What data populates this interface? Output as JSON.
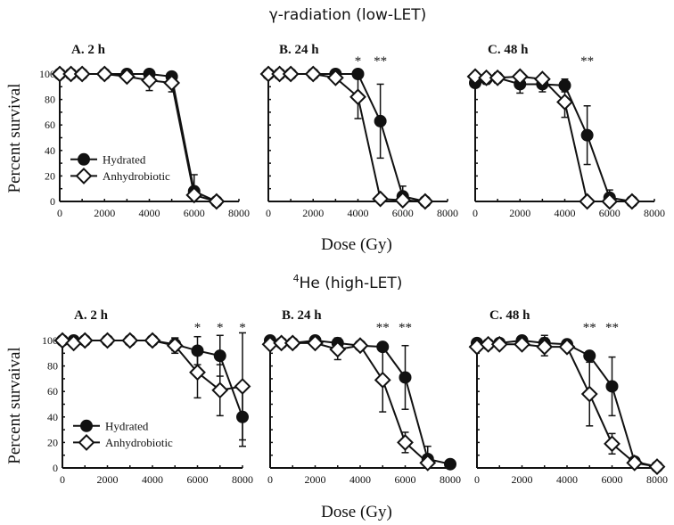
{
  "figure": {
    "sections": [
      {
        "title": "γ-radiation (low-LET)",
        "xlabel": "Dose (Gy)",
        "ylabel": "Percent survival"
      },
      {
        "title_sup": "4",
        "title": "He (high-LET)",
        "xlabel": "Dose (Gy)",
        "ylabel": "Percent survaival"
      }
    ],
    "legend": {
      "items": [
        {
          "label": "Hydrated",
          "marker": "filled-circle"
        },
        {
          "label": "Anhydrobiotic",
          "marker": "open-diamond"
        }
      ]
    },
    "colors": {
      "ink": "#111111",
      "background": "#ffffff"
    }
  },
  "chart_data": [
    {
      "type": "line",
      "section": "γ-radiation (low-LET)",
      "title": "A. 2 h",
      "xlabel": "Dose (Gy)",
      "ylabel": "Percent survival",
      "xlim": [
        0,
        8000
      ],
      "ylim": [
        0,
        100
      ],
      "xticks": [
        0,
        2000,
        4000,
        6000,
        8000
      ],
      "yticks": [
        0,
        20,
        40,
        60,
        80,
        100
      ],
      "legend": "lower-left",
      "series": [
        {
          "name": "Hydrated",
          "x": [
            0,
            500,
            1000,
            2000,
            3000,
            4000,
            5000,
            6000,
            7000
          ],
          "y": [
            100,
            100,
            100,
            100,
            100,
            100,
            98,
            8,
            0
          ],
          "err": [
            0,
            0,
            0,
            0,
            2,
            2,
            2,
            13,
            1
          ]
        },
        {
          "name": "Anhydrobiotic",
          "x": [
            0,
            500,
            1000,
            2000,
            3000,
            4000,
            5000,
            6000,
            7000
          ],
          "y": [
            100,
            100,
            100,
            100,
            98,
            95,
            93,
            5,
            0
          ],
          "err": [
            0,
            0,
            0,
            0,
            2,
            8,
            7,
            3,
            1
          ]
        }
      ],
      "significance": []
    },
    {
      "type": "line",
      "section": "γ-radiation (low-LET)",
      "title": "B. 24 h",
      "xlabel": "Dose (Gy)",
      "ylabel": "Percent survival",
      "xlim": [
        0,
        8000
      ],
      "ylim": [
        0,
        100
      ],
      "xticks": [
        0,
        2000,
        4000,
        6000,
        8000
      ],
      "yticks": [
        0,
        20,
        40,
        60,
        80,
        100
      ],
      "series": [
        {
          "name": "Hydrated",
          "x": [
            0,
            500,
            1000,
            2000,
            3000,
            4000,
            5000,
            6000,
            7000
          ],
          "y": [
            100,
            100,
            100,
            100,
            100,
            100,
            63,
            4,
            0
          ],
          "err": [
            0,
            0,
            0,
            0,
            1,
            1,
            29,
            8,
            1
          ]
        },
        {
          "name": "Anhydrobiotic",
          "x": [
            0,
            500,
            1000,
            2000,
            3000,
            4000,
            5000,
            6000,
            7000
          ],
          "y": [
            100,
            100,
            100,
            100,
            97,
            82,
            2,
            1,
            0
          ],
          "err": [
            0,
            0,
            0,
            0,
            2,
            17,
            1,
            1,
            1
          ]
        }
      ],
      "significance": [
        {
          "x": 4000,
          "label": "*"
        },
        {
          "x": 5000,
          "label": "**"
        }
      ]
    },
    {
      "type": "line",
      "section": "γ-radiation (low-LET)",
      "title": "C. 48 h",
      "xlabel": "Dose (Gy)",
      "ylabel": "Percent survival",
      "xlim": [
        0,
        8000
      ],
      "ylim": [
        0,
        100
      ],
      "xticks": [
        0,
        2000,
        4000,
        6000,
        8000
      ],
      "yticks": [
        0,
        20,
        40,
        60,
        80,
        100
      ],
      "series": [
        {
          "name": "Hydrated",
          "x": [
            0,
            500,
            1000,
            2000,
            3000,
            4000,
            5000,
            6000,
            7000
          ],
          "y": [
            93,
            96,
            97,
            92,
            92,
            91,
            52,
            3,
            0
          ],
          "err": [
            2,
            4,
            4,
            7,
            6,
            5,
            23,
            6,
            1
          ]
        },
        {
          "name": "Anhydrobiotic",
          "x": [
            0,
            500,
            1000,
            2000,
            3000,
            4000,
            5000,
            6000,
            7000
          ],
          "y": [
            98,
            97,
            97,
            98,
            96,
            78,
            0,
            0,
            0
          ],
          "err": [
            0,
            2,
            2,
            2,
            2,
            12,
            1,
            1,
            1
          ]
        }
      ],
      "significance": [
        {
          "x": 5000,
          "label": "**"
        }
      ]
    },
    {
      "type": "line",
      "section": "4He (high-LET)",
      "title": "A. 2 h",
      "xlabel": "Dose (Gy)",
      "ylabel": "Percent survaival",
      "xlim": [
        0,
        8000
      ],
      "ylim": [
        0,
        100
      ],
      "xticks": [
        0,
        2000,
        4000,
        6000,
        8000
      ],
      "yticks": [
        0,
        20,
        40,
        60,
        80,
        100
      ],
      "legend": "lower-left",
      "series": [
        {
          "name": "Hydrated",
          "x": [
            0,
            500,
            1000,
            2000,
            3000,
            4000,
            5000,
            6000,
            7000,
            8000
          ],
          "y": [
            100,
            100,
            100,
            100,
            100,
            100,
            97,
            92,
            88,
            40
          ],
          "err": [
            0,
            0,
            0,
            0,
            0,
            0,
            5,
            11,
            16,
            23
          ]
        },
        {
          "name": "Anhydrobiotic",
          "x": [
            0,
            500,
            1000,
            2000,
            3000,
            4000,
            5000,
            6000,
            7000,
            8000
          ],
          "y": [
            100,
            98,
            100,
            100,
            100,
            100,
            96,
            75,
            61,
            64
          ],
          "err": [
            0,
            0,
            0,
            0,
            0,
            0,
            6,
            20,
            20,
            42
          ]
        }
      ],
      "significance": [
        {
          "x": 6000,
          "label": "*"
        },
        {
          "x": 7000,
          "label": "*"
        },
        {
          "x": 8000,
          "label": "*"
        }
      ]
    },
    {
      "type": "line",
      "section": "4He (high-LET)",
      "title": "B. 24 h",
      "xlabel": "Dose (Gy)",
      "ylabel": "Percent survaival",
      "xlim": [
        0,
        8000
      ],
      "ylim": [
        0,
        100
      ],
      "xticks": [
        0,
        2000,
        4000,
        6000,
        8000
      ],
      "yticks": [
        0,
        20,
        40,
        60,
        80,
        100
      ],
      "series": [
        {
          "name": "Hydrated",
          "x": [
            0,
            500,
            1000,
            2000,
            3000,
            4000,
            5000,
            6000,
            7000,
            8000
          ],
          "y": [
            100,
            98,
            98,
            100,
            98,
            96,
            95,
            71,
            7,
            3
          ],
          "err": [
            0,
            0,
            0,
            2,
            4,
            2,
            2,
            25,
            10,
            1
          ]
        },
        {
          "name": "Anhydrobiotic",
          "x": [
            0,
            500,
            1000,
            2000,
            3000,
            4000,
            5000,
            6000,
            7000
          ],
          "y": [
            97,
            98,
            98,
            98,
            93,
            96,
            69,
            20,
            4
          ],
          "err": [
            0,
            0,
            0,
            2,
            8,
            2,
            25,
            8,
            2
          ]
        }
      ],
      "significance": [
        {
          "x": 5000,
          "label": "**"
        },
        {
          "x": 6000,
          "label": "**"
        }
      ]
    },
    {
      "type": "line",
      "section": "4He (high-LET)",
      "title": "C. 48 h",
      "xlabel": "Dose (Gy)",
      "ylabel": "Percent survaival",
      "xlim": [
        0,
        8000
      ],
      "ylim": [
        0,
        100
      ],
      "xticks": [
        0,
        2000,
        4000,
        6000,
        8000
      ],
      "yticks": [
        0,
        20,
        40,
        60,
        80,
        100
      ],
      "series": [
        {
          "name": "Hydrated",
          "x": [
            0,
            500,
            1000,
            2000,
            3000,
            4000,
            5000,
            6000,
            7000,
            8000
          ],
          "y": [
            98,
            97,
            98,
            100,
            98,
            97,
            88,
            64,
            5,
            1
          ],
          "err": [
            0,
            2,
            2,
            2,
            6,
            3,
            2,
            23,
            2,
            1
          ]
        },
        {
          "name": "Anhydrobiotic",
          "x": [
            0,
            500,
            1000,
            2000,
            3000,
            4000,
            5000,
            6000,
            7000,
            8000
          ],
          "y": [
            95,
            97,
            97,
            97,
            95,
            95,
            58,
            19,
            4,
            1
          ],
          "err": [
            0,
            2,
            2,
            2,
            7,
            3,
            25,
            8,
            2,
            1
          ]
        }
      ],
      "significance": [
        {
          "x": 5000,
          "label": "**"
        },
        {
          "x": 6000,
          "label": "**"
        }
      ]
    }
  ]
}
